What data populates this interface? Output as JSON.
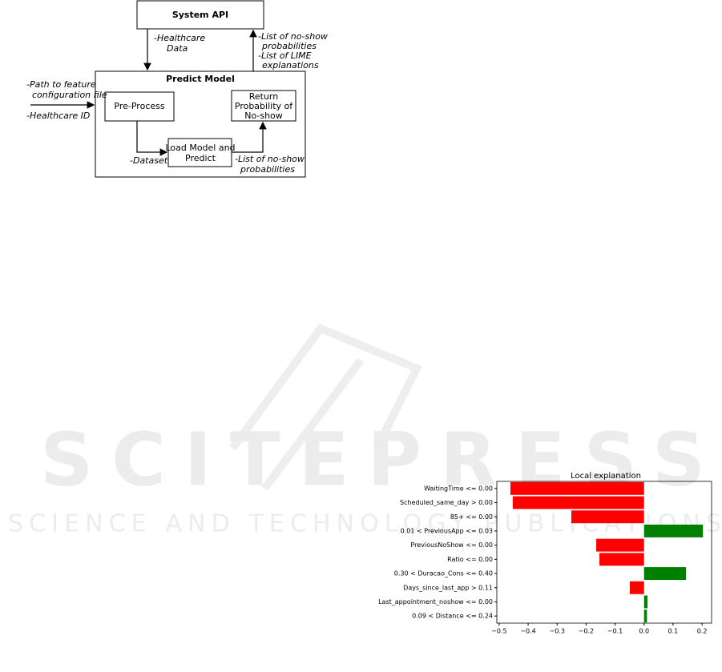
{
  "diagram": {
    "nodes": [
      {
        "id": "system-api",
        "lines": [
          "System API"
        ]
      },
      {
        "id": "predict-model",
        "lines": [
          "Predict Model"
        ]
      },
      {
        "id": "pre-process",
        "lines": [
          "Pre-Process"
        ]
      },
      {
        "id": "return-prob",
        "lines": [
          "Return",
          "Probability of",
          "No-show"
        ]
      },
      {
        "id": "load-model",
        "lines": [
          "Load Model and",
          "Predict"
        ]
      }
    ],
    "edge_labels": [
      {
        "lines": [
          "-Healthcare",
          "Data"
        ]
      },
      {
        "lines": [
          "-List of no-show",
          "probabilities",
          "-List of LIME",
          "explanations"
        ]
      },
      {
        "lines": [
          "-Path to feature",
          "configuration file"
        ]
      },
      {
        "lines": [
          "-Healthcare ID"
        ]
      },
      {
        "lines": [
          "-Dataset"
        ]
      },
      {
        "lines": [
          "-List of no-show",
          "probabilities"
        ]
      }
    ]
  },
  "watermark": {
    "title": "SCITEPRESS",
    "subtitle": "SCIENCE AND TECHNOLOGY PUBLICATIONS"
  },
  "chart_data": {
    "type": "barh",
    "title": "Local explanation",
    "categories": [
      "WaitingTime <= 0.00",
      "Scheduled_same_day > 0.00",
      "85+ <= 0.00",
      "0.01 < PreviousApp <= 0.03",
      "PreviousNoShow <= 0.00",
      "Ratio <= 0.00",
      "0.30 < Duracao_Cons <= 0.40",
      "Days_since_last_app > 0.11",
      "Last_appointment_noshow <= 0.00",
      "0.09 < Distance <= 0.24"
    ],
    "values": [
      -0.461,
      -0.453,
      -0.251,
      0.203,
      -0.165,
      -0.154,
      0.145,
      -0.049,
      0.012,
      0.01
    ],
    "positive_color": "green",
    "negative_color": "red",
    "xlim": [
      -0.508,
      0.233
    ],
    "xticks": [
      {
        "value": -0.5,
        "label": "−0.5"
      },
      {
        "value": -0.4,
        "label": "−0.4"
      },
      {
        "value": -0.3,
        "label": "−0.3"
      },
      {
        "value": -0.2,
        "label": "−0.2"
      },
      {
        "value": -0.1,
        "label": "−0.1"
      },
      {
        "value": 0,
        "label": "0.0"
      },
      0.1,
      0.2
    ]
  }
}
